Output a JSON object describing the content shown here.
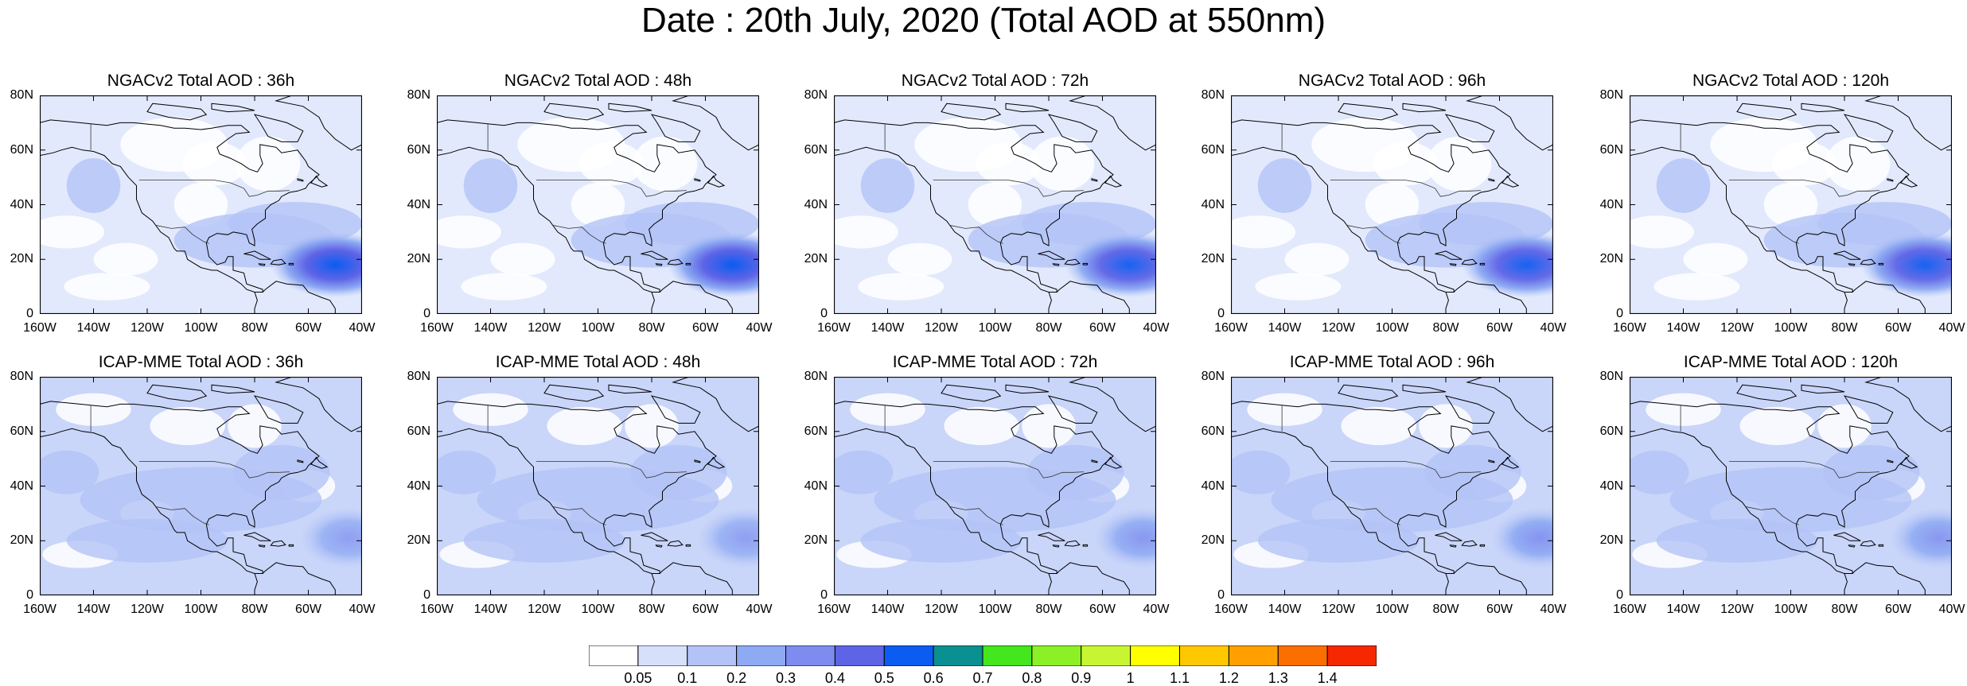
{
  "title": "Date : 20th July, 2020 (Total AOD at 550nm)",
  "lon_ticks": [
    "160W",
    "140W",
    "120W",
    "100W",
    "80W",
    "60W",
    "40W"
  ],
  "lat_ticks": [
    "0",
    "20N",
    "40N",
    "60N",
    "80N"
  ],
  "map_extent": {
    "lon_min": -160,
    "lon_max": -40,
    "lat_min": 0,
    "lat_max": 80
  },
  "rows": [
    {
      "model": "NGACv2",
      "panels": [
        {
          "title": "NGACv2 Total AOD : 36h",
          "plume_intensity": 0.55
        },
        {
          "title": "NGACv2 Total AOD : 48h",
          "plume_intensity": 0.5
        },
        {
          "title": "NGACv2 Total AOD : 72h",
          "plume_intensity": 0.45
        },
        {
          "title": "NGACv2 Total AOD : 96h",
          "plume_intensity": 0.45
        },
        {
          "title": "NGACv2 Total AOD : 120h",
          "plume_intensity": 0.45
        }
      ]
    },
    {
      "model": "ICAP-MME",
      "panels": [
        {
          "title": "ICAP-MME Total AOD : 36h",
          "plume_intensity": 0.25
        },
        {
          "title": "ICAP-MME Total AOD : 48h",
          "plume_intensity": 0.25
        },
        {
          "title": "ICAP-MME Total AOD : 72h",
          "plume_intensity": 0.35
        },
        {
          "title": "ICAP-MME Total AOD : 96h",
          "plume_intensity": 0.4
        },
        {
          "title": "ICAP-MME Total AOD : 120h",
          "plume_intensity": 0.35
        }
      ]
    }
  ],
  "colorbar": {
    "labels": [
      "0.05",
      "0.1",
      "0.2",
      "0.3",
      "0.4",
      "0.5",
      "0.6",
      "0.7",
      "0.8",
      "0.9",
      "1",
      "1.1",
      "1.2",
      "1.3",
      "1.4"
    ],
    "colors": [
      "#ffffff",
      "#d7e0fb",
      "#b3c3f6",
      "#8eaaf3",
      "#7e8cef",
      "#5e64e6",
      "#0b5cf0",
      "#0a9090",
      "#44e61e",
      "#8cf026",
      "#c8f532",
      "#ffff00",
      "#ffc800",
      "#ffa000",
      "#fb6e00",
      "#f52800"
    ]
  }
}
